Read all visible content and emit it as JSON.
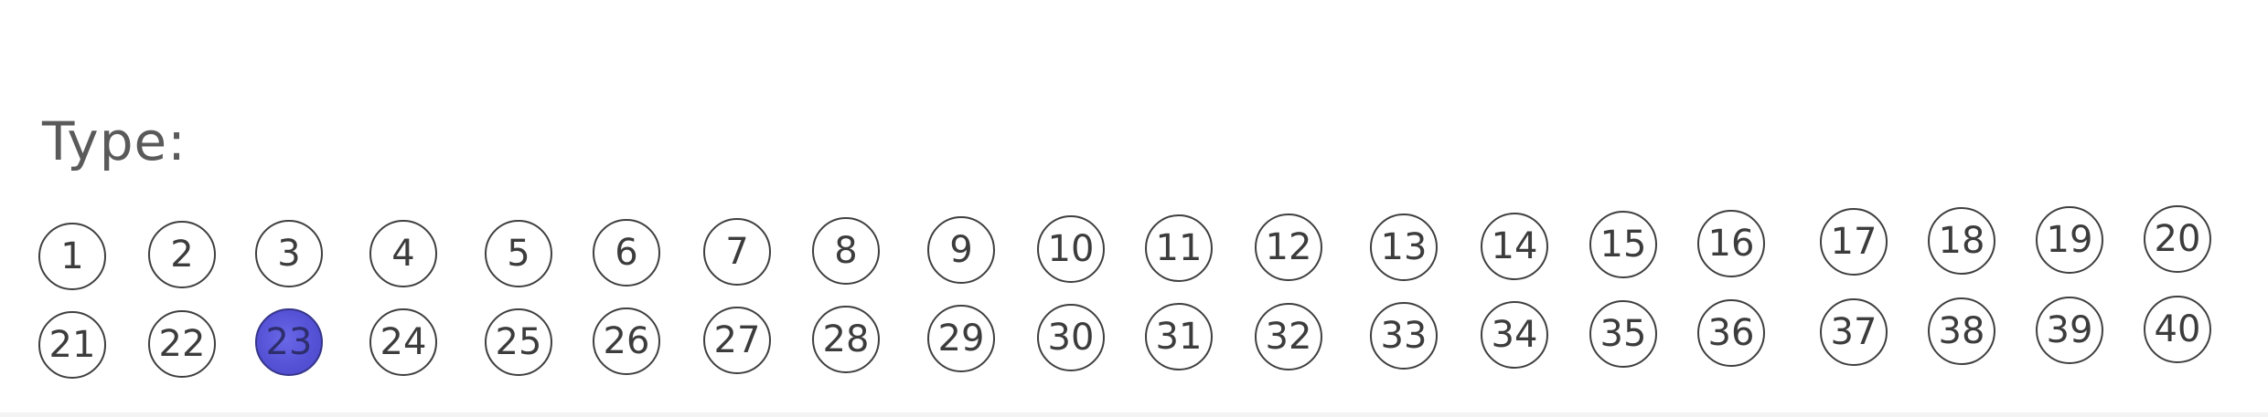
{
  "form": {
    "type_label": "Type:",
    "selected_value": 23,
    "fill_color": "#5552d6",
    "rows": [
      {
        "bubbles": [
          "1",
          "2",
          "3",
          "4",
          "5",
          "6",
          "7",
          "8",
          "9",
          "10",
          "11",
          "12",
          "13",
          "14",
          "15",
          "16",
          "17",
          "18",
          "19",
          "20"
        ]
      },
      {
        "bubbles": [
          "21",
          "22",
          "23",
          "24",
          "25",
          "26",
          "27",
          "28",
          "29",
          "30",
          "31",
          "32",
          "33",
          "34",
          "35",
          "36",
          "37",
          "38",
          "39",
          "40"
        ]
      }
    ]
  }
}
